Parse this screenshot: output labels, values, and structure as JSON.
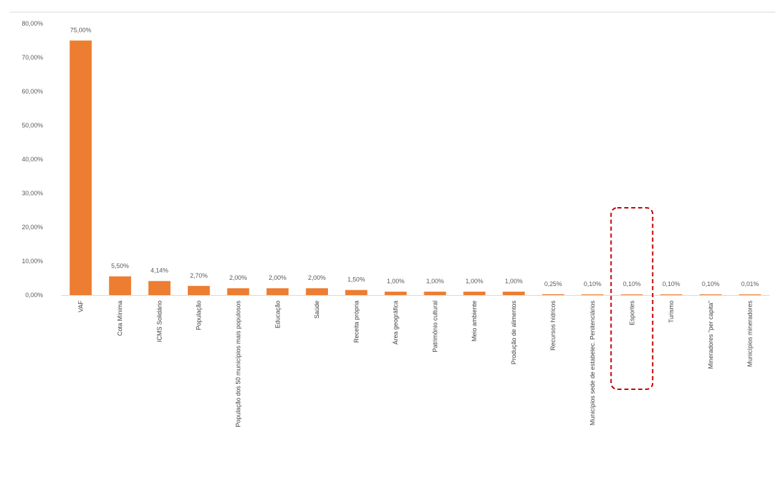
{
  "chart_data": {
    "type": "bar",
    "title": "",
    "xlabel": "",
    "ylabel": "",
    "ylim": [
      0,
      80
    ],
    "yticks": [
      "0,00%",
      "10,00%",
      "20,00%",
      "30,00%",
      "40,00%",
      "50,00%",
      "60,00%",
      "70,00%",
      "80,00%"
    ],
    "grid": false,
    "categories": [
      "VAF",
      "Cota Mínima",
      "ICMS Solidário",
      "População",
      "População dos 50 municípios mais populosos",
      "Educação",
      "Saúde",
      "Receita própria",
      "Área geográfica",
      "Patrimônio cultural",
      "Meio ambiente",
      "Produção de alimentos",
      "Recursos hídricos",
      "Municípios sede de estabelec. Penitenciários",
      "Esportes",
      "Turismo",
      "Mineradores \"per capita\"",
      "Municípios mineradores"
    ],
    "values": [
      75.0,
      5.5,
      4.14,
      2.7,
      2.0,
      2.0,
      2.0,
      1.5,
      1.0,
      1.0,
      1.0,
      1.0,
      0.25,
      0.1,
      0.1,
      0.1,
      0.1,
      0.01
    ],
    "data_labels": [
      "75,00%",
      "5,50%",
      "4,14%",
      "2,70%",
      "2,00%",
      "2,00%",
      "2,00%",
      "1,50%",
      "1,00%",
      "1,00%",
      "1,00%",
      "1,00%",
      "0,25%",
      "0,10%",
      "0,10%",
      "0,10%",
      "0,10%",
      "0,01%"
    ],
    "highlight_index": 14,
    "colors": {
      "bar": "#ed7d31",
      "highlight": "#c00000",
      "axis": "#d9d9d9"
    }
  }
}
